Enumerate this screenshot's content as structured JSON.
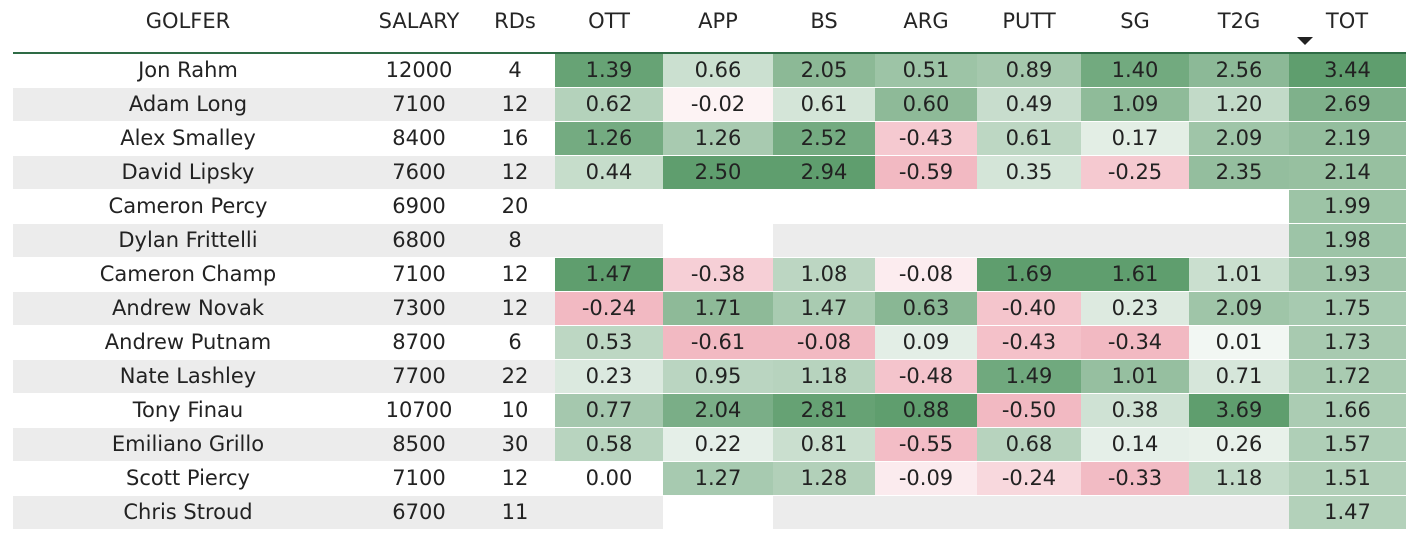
{
  "colors": {
    "positive": "#5f9e6e",
    "negative": "#f2b9c2",
    "zebra": "#ececec",
    "header_line": "#2e6b45"
  },
  "sort": {
    "column": "TOT",
    "direction": "descending"
  },
  "chart_data": {
    "type": "table",
    "columns": [
      "GOLFER",
      "SALARY",
      "RDs",
      "OTT",
      "APP",
      "BS",
      "ARG",
      "PUTT",
      "SG",
      "T2G",
      "TOT"
    ],
    "rows": [
      [
        "Jon Rahm",
        "12000",
        "4",
        "1.39",
        "0.66",
        "2.05",
        "0.51",
        "0.89",
        "1.40",
        "2.56",
        "3.44"
      ],
      [
        "Adam Long",
        "7100",
        "12",
        "0.62",
        "-0.02",
        "0.61",
        "0.60",
        "0.49",
        "1.09",
        "1.20",
        "2.69"
      ],
      [
        "Alex Smalley",
        "8400",
        "16",
        "1.26",
        "1.26",
        "2.52",
        "-0.43",
        "0.61",
        "0.17",
        "2.09",
        "2.19"
      ],
      [
        "David Lipsky",
        "7600",
        "12",
        "0.44",
        "2.50",
        "2.94",
        "-0.59",
        "0.35",
        "-0.25",
        "2.35",
        "2.14"
      ],
      [
        "Cameron Percy",
        "6900",
        "20",
        "",
        "",
        "",
        "",
        "",
        "",
        "",
        "1.99"
      ],
      [
        "Dylan Frittelli",
        "6800",
        "8",
        "",
        "",
        "",
        "",
        "",
        "",
        "",
        "1.98"
      ],
      [
        "Cameron Champ",
        "7100",
        "12",
        "1.47",
        "-0.38",
        "1.08",
        "-0.08",
        "1.69",
        "1.61",
        "1.01",
        "1.93"
      ],
      [
        "Andrew Novak",
        "7300",
        "12",
        "-0.24",
        "1.71",
        "1.47",
        "0.63",
        "-0.40",
        "0.23",
        "2.09",
        "1.75"
      ],
      [
        "Andrew Putnam",
        "8700",
        "6",
        "0.53",
        "-0.61",
        "-0.08",
        "0.09",
        "-0.43",
        "-0.34",
        "0.01",
        "1.73"
      ],
      [
        "Nate Lashley",
        "7700",
        "22",
        "0.23",
        "0.95",
        "1.18",
        "-0.48",
        "1.49",
        "1.01",
        "0.71",
        "1.72"
      ],
      [
        "Tony Finau",
        "10700",
        "10",
        "0.77",
        "2.04",
        "2.81",
        "0.88",
        "-0.50",
        "0.38",
        "3.69",
        "1.66"
      ],
      [
        "Emiliano Grillo",
        "8500",
        "30",
        "0.58",
        "0.22",
        "0.81",
        "-0.55",
        "0.68",
        "0.14",
        "0.26",
        "1.57"
      ],
      [
        "Scott Piercy",
        "7100",
        "12",
        "0.00",
        "1.27",
        "1.28",
        "-0.09",
        "-0.24",
        "-0.33",
        "1.18",
        "1.51"
      ],
      [
        "Chris Stroud",
        "6700",
        "11",
        "",
        "",
        "",
        "",
        "",
        "",
        "",
        "1.47"
      ]
    ]
  }
}
